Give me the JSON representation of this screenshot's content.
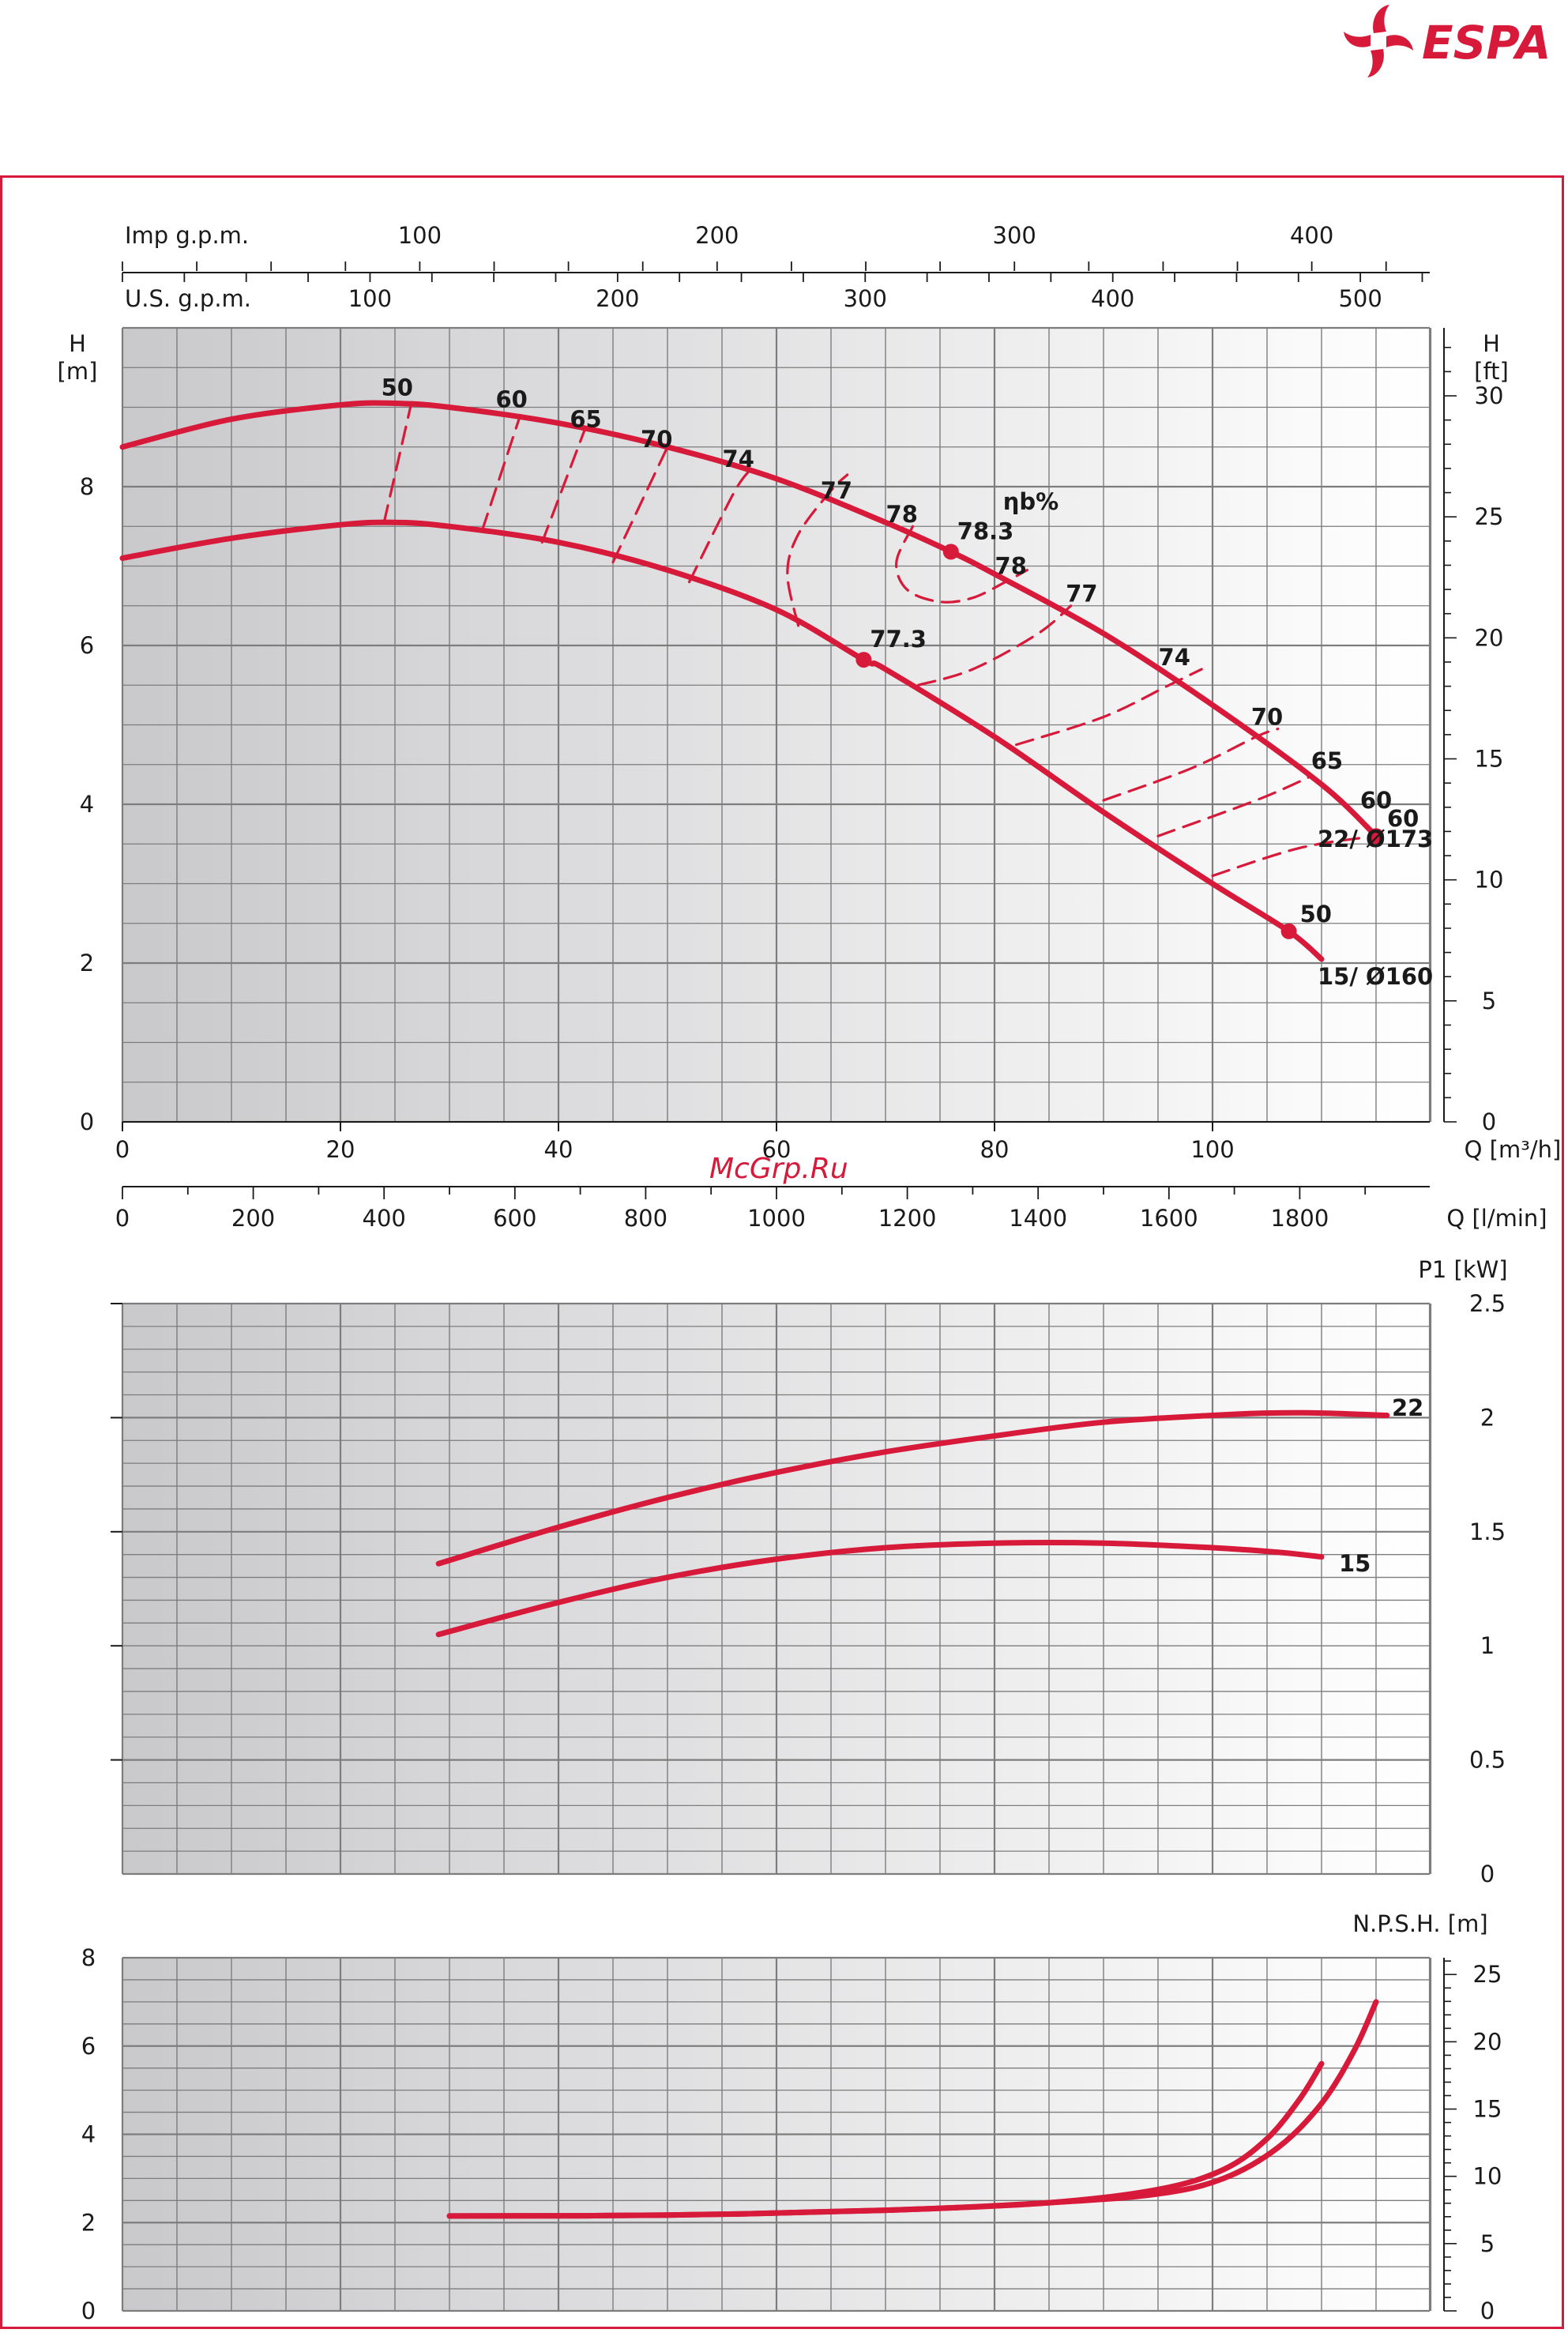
{
  "brand": {
    "name": "ESPA",
    "color": "#d7193a",
    "icon": "impeller-icon"
  },
  "watermark": "McGrp.Ru",
  "chart_data": [
    {
      "id": "head",
      "type": "line",
      "xlabel": "Q [m³/h]",
      "xlim": [
        0,
        120
      ],
      "ticks_m3h": [
        "0",
        "20",
        "40",
        "60",
        "80",
        "100"
      ],
      "ticks_lmin": [
        "0",
        "200",
        "400",
        "600",
        "800",
        "1000",
        "1200",
        "1400",
        "1600",
        "1800"
      ],
      "xlabel_lmin": "Q [l/min]",
      "ticks_usgpm": [
        "100",
        "200",
        "300",
        "400",
        "500"
      ],
      "label_usgpm": "U.S. g.p.m.",
      "ticks_impgpm": [
        "100",
        "200",
        "300",
        "400"
      ],
      "label_impgpm": "Imp g.p.m.",
      "ylabel_left": "H\n[m]",
      "ylabel_left_line1": "H",
      "ylabel_left_line2": "[m]",
      "ylim": [
        0,
        10
      ],
      "yticks_left": [
        "0",
        "2",
        "4",
        "6",
        "8"
      ],
      "ylabel_right_line1": "H",
      "ylabel_right_line2": "[ft]",
      "yticks_right": [
        "0",
        "5",
        "10",
        "15",
        "20",
        "25",
        "30"
      ],
      "efficiency_label": "ηb%",
      "grid": true,
      "series": [
        {
          "name": "22/ Ø173",
          "x": [
            0,
            10,
            20,
            25,
            30,
            40,
            50,
            60,
            70,
            76,
            80,
            90,
            100,
            110,
            115
          ],
          "y": [
            8.5,
            8.85,
            9.03,
            9.05,
            9.0,
            8.8,
            8.5,
            8.1,
            7.55,
            7.18,
            6.9,
            6.15,
            5.25,
            4.25,
            3.6
          ]
        },
        {
          "name": "15/ Ø160",
          "x": [
            0,
            10,
            20,
            25,
            30,
            40,
            50,
            60,
            68,
            70,
            80,
            90,
            100,
            107,
            110
          ],
          "y": [
            7.1,
            7.35,
            7.52,
            7.55,
            7.5,
            7.3,
            6.95,
            6.45,
            5.82,
            5.7,
            4.85,
            3.9,
            3.0,
            2.4,
            2.05
          ]
        }
      ],
      "bep_points": [
        {
          "label": "78.3",
          "x": 76,
          "y": 7.18
        },
        {
          "label": "77.3",
          "x": 68,
          "y": 5.82
        }
      ],
      "end_points": [
        {
          "label": "60",
          "x": 115,
          "y": 3.6
        },
        {
          "label": "50",
          "x": 107,
          "y": 2.4
        }
      ],
      "iso_efficiency": [
        {
          "label": "50",
          "x": [
            24,
            26.5
          ],
          "y": [
            7.55,
            9.05
          ]
        },
        {
          "label": "60",
          "x": [
            33,
            36.5
          ],
          "y": [
            7.45,
            8.9
          ]
        },
        {
          "label": "65",
          "x": [
            38.5,
            42.5
          ],
          "y": [
            7.3,
            8.75
          ]
        },
        {
          "label": "70",
          "x": [
            45,
            50
          ],
          "y": [
            7.05,
            8.5
          ]
        },
        {
          "label": "74",
          "x": [
            52,
            56,
            57.5
          ],
          "y": [
            6.8,
            7.9,
            8.2
          ]
        },
        {
          "label": "77",
          "x": [
            62,
            61,
            62,
            65,
            66.5
          ],
          "y": [
            6.25,
            6.9,
            7.4,
            7.95,
            8.15
          ]
        },
        {
          "label": "77",
          "x": [
            73,
            78,
            84,
            87
          ],
          "y": [
            5.5,
            5.7,
            6.15,
            6.5
          ]
        },
        {
          "label": "74",
          "x": [
            82,
            90,
            96,
            99
          ],
          "y": [
            4.75,
            5.1,
            5.5,
            5.7
          ]
        },
        {
          "label": "70",
          "x": [
            90,
            98,
            104,
            106
          ],
          "y": [
            4.05,
            4.45,
            4.85,
            4.95
          ]
        },
        {
          "label": "65",
          "x": [
            95,
            104,
            109
          ],
          "y": [
            3.6,
            4.05,
            4.35
          ]
        },
        {
          "label": "60",
          "x": [
            100,
            108,
            115
          ],
          "y": [
            3.1,
            3.45,
            3.6
          ]
        },
        {
          "label": "78",
          "x": [
            72.5,
            71,
            72,
            75,
            78,
            81,
            83
          ],
          "y": [
            7.5,
            7.05,
            6.7,
            6.55,
            6.6,
            6.8,
            6.95
          ]
        }
      ],
      "iso_labels": [
        {
          "text": "50",
          "x": 25.2,
          "y": 9.15
        },
        {
          "text": "60",
          "x": 35.7,
          "y": 9.0
        },
        {
          "text": "65",
          "x": 42.5,
          "y": 8.75
        },
        {
          "text": "70",
          "x": 49,
          "y": 8.5
        },
        {
          "text": "74",
          "x": 56.5,
          "y": 8.25
        },
        {
          "text": "77",
          "x": 65.5,
          "y": 7.85
        },
        {
          "text": "78",
          "x": 71.5,
          "y": 7.55
        },
        {
          "text": "78",
          "x": 81.5,
          "y": 6.9
        },
        {
          "text": "77",
          "x": 88,
          "y": 6.55
        },
        {
          "text": "74",
          "x": 96.5,
          "y": 5.75
        },
        {
          "text": "70",
          "x": 105,
          "y": 5.0
        },
        {
          "text": "65",
          "x": 110.5,
          "y": 4.45
        },
        {
          "text": "60",
          "x": 115,
          "y": 3.95
        }
      ]
    },
    {
      "id": "power",
      "type": "line",
      "ylabel": "P1 [kW]",
      "xlim": [
        0,
        120
      ],
      "ylim": [
        0,
        2.5
      ],
      "yticks": [
        "0",
        "0.5",
        "1",
        "1.5",
        "2",
        "2.5"
      ],
      "series": [
        {
          "name": "22",
          "x": [
            29,
            40,
            50,
            60,
            70,
            80,
            90,
            100,
            105,
            110,
            116
          ],
          "y": [
            1.36,
            1.52,
            1.65,
            1.76,
            1.85,
            1.92,
            1.98,
            2.01,
            2.02,
            2.02,
            2.01
          ]
        },
        {
          "name": "15",
          "x": [
            29,
            40,
            50,
            60,
            70,
            80,
            90,
            100,
            106,
            110
          ],
          "y": [
            1.05,
            1.19,
            1.3,
            1.38,
            1.43,
            1.45,
            1.45,
            1.43,
            1.41,
            1.39
          ]
        }
      ]
    },
    {
      "id": "npsh",
      "type": "line",
      "ylabel": "N.P.S.H. [m]",
      "xlim": [
        0,
        120
      ],
      "ylim": [
        0,
        8
      ],
      "yticks_left": [
        "0",
        "2",
        "4",
        "6",
        "8"
      ],
      "yticks_right": [
        "0",
        "5",
        "10",
        "15",
        "20",
        "25"
      ],
      "series": [
        {
          "name": "22",
          "x": [
            30,
            50,
            70,
            85,
            95,
            101,
            106,
            110,
            113,
            115
          ],
          "y": [
            2.15,
            2.17,
            2.28,
            2.45,
            2.65,
            3.0,
            3.7,
            4.7,
            5.9,
            7.0
          ]
        },
        {
          "name": "15",
          "x": [
            30,
            50,
            70,
            85,
            95,
            101,
            105,
            108,
            110
          ],
          "y": [
            2.15,
            2.17,
            2.28,
            2.45,
            2.75,
            3.2,
            3.9,
            4.8,
            5.6
          ]
        }
      ]
    }
  ],
  "label_22": "22",
  "label_15": "15",
  "colors": {
    "curve": "#d7193a",
    "grid": "#7d7d7d",
    "bg_dark": "#c9c9cc",
    "bg_light": "#ffffff"
  }
}
